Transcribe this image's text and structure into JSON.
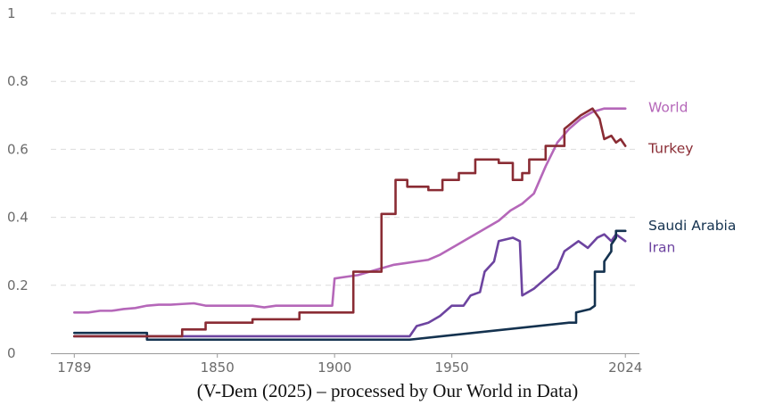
{
  "chart_data": {
    "type": "line",
    "title": "",
    "xlabel": "",
    "ylabel": "",
    "xlim": [
      1779,
      2030
    ],
    "ylim": [
      0,
      1
    ],
    "x_ticks": [
      "1789",
      "1850",
      "1900",
      "1950",
      "2024"
    ],
    "y_ticks": [
      "0",
      "0.2",
      "0.4",
      "0.6",
      "0.8",
      "1"
    ],
    "grid": "horizontal dashed",
    "legend": "inline labels at right end of lines",
    "series": [
      {
        "name": "World",
        "color": "#b567b9",
        "points": [
          [
            1789,
            0.12
          ],
          [
            1795,
            0.12
          ],
          [
            1800,
            0.125
          ],
          [
            1805,
            0.125
          ],
          [
            1810,
            0.13
          ],
          [
            1815,
            0.133
          ],
          [
            1820,
            0.14
          ],
          [
            1825,
            0.143
          ],
          [
            1830,
            0.143
          ],
          [
            1835,
            0.145
          ],
          [
            1840,
            0.147
          ],
          [
            1845,
            0.14
          ],
          [
            1850,
            0.14
          ],
          [
            1855,
            0.14
          ],
          [
            1860,
            0.14
          ],
          [
            1865,
            0.14
          ],
          [
            1870,
            0.135
          ],
          [
            1875,
            0.14
          ],
          [
            1880,
            0.14
          ],
          [
            1885,
            0.14
          ],
          [
            1890,
            0.14
          ],
          [
            1895,
            0.14
          ],
          [
            1899,
            0.14
          ],
          [
            1900,
            0.22
          ],
          [
            1905,
            0.225
          ],
          [
            1910,
            0.23
          ],
          [
            1915,
            0.24
          ],
          [
            1920,
            0.25
          ],
          [
            1925,
            0.26
          ],
          [
            1930,
            0.265
          ],
          [
            1935,
            0.27
          ],
          [
            1940,
            0.275
          ],
          [
            1945,
            0.29
          ],
          [
            1950,
            0.31
          ],
          [
            1955,
            0.33
          ],
          [
            1960,
            0.35
          ],
          [
            1965,
            0.37
          ],
          [
            1970,
            0.39
          ],
          [
            1975,
            0.42
          ],
          [
            1980,
            0.44
          ],
          [
            1985,
            0.47
          ],
          [
            1990,
            0.55
          ],
          [
            1995,
            0.62
          ],
          [
            2000,
            0.66
          ],
          [
            2005,
            0.69
          ],
          [
            2010,
            0.71
          ],
          [
            2015,
            0.72
          ],
          [
            2020,
            0.72
          ],
          [
            2024,
            0.72
          ]
        ]
      },
      {
        "name": "Turkey",
        "color": "#8a2c34",
        "points": [
          [
            1789,
            0.05
          ],
          [
            1835,
            0.05
          ],
          [
            1835,
            0.07
          ],
          [
            1845,
            0.07
          ],
          [
            1845,
            0.09
          ],
          [
            1865,
            0.09
          ],
          [
            1865,
            0.1
          ],
          [
            1885,
            0.1
          ],
          [
            1885,
            0.12
          ],
          [
            1908,
            0.12
          ],
          [
            1908,
            0.24
          ],
          [
            1920,
            0.24
          ],
          [
            1920,
            0.41
          ],
          [
            1926,
            0.41
          ],
          [
            1926,
            0.51
          ],
          [
            1931,
            0.51
          ],
          [
            1931,
            0.49
          ],
          [
            1940,
            0.49
          ],
          [
            1940,
            0.48
          ],
          [
            1946,
            0.48
          ],
          [
            1946,
            0.51
          ],
          [
            1953,
            0.51
          ],
          [
            1953,
            0.53
          ],
          [
            1960,
            0.53
          ],
          [
            1960,
            0.57
          ],
          [
            1970,
            0.57
          ],
          [
            1970,
            0.56
          ],
          [
            1976,
            0.56
          ],
          [
            1976,
            0.51
          ],
          [
            1980,
            0.51
          ],
          [
            1980,
            0.53
          ],
          [
            1983,
            0.53
          ],
          [
            1983,
            0.57
          ],
          [
            1990,
            0.57
          ],
          [
            1990,
            0.61
          ],
          [
            1998,
            0.61
          ],
          [
            1998,
            0.66
          ],
          [
            2005,
            0.7
          ],
          [
            2010,
            0.72
          ],
          [
            2013,
            0.69
          ],
          [
            2015,
            0.63
          ],
          [
            2018,
            0.64
          ],
          [
            2020,
            0.62
          ],
          [
            2022,
            0.63
          ],
          [
            2024,
            0.61
          ]
        ]
      },
      {
        "name": "Saudi Arabia",
        "color": "#14324f",
        "points": [
          [
            1789,
            0.06
          ],
          [
            1820,
            0.06
          ],
          [
            1820,
            0.04
          ],
          [
            1932,
            0.04
          ],
          [
            2000,
            0.09
          ],
          [
            2003,
            0.09
          ],
          [
            2003,
            0.12
          ],
          [
            2009,
            0.13
          ],
          [
            2011,
            0.14
          ],
          [
            2011,
            0.24
          ],
          [
            2015,
            0.24
          ],
          [
            2015,
            0.27
          ],
          [
            2018,
            0.3
          ],
          [
            2018,
            0.32
          ],
          [
            2020,
            0.34
          ],
          [
            2020,
            0.36
          ],
          [
            2024,
            0.36
          ]
        ]
      },
      {
        "name": "Iran",
        "color": "#6d44a0",
        "points": [
          [
            1789,
            0.05
          ],
          [
            1850,
            0.05
          ],
          [
            1920,
            0.05
          ],
          [
            1932,
            0.05
          ],
          [
            1935,
            0.08
          ],
          [
            1940,
            0.09
          ],
          [
            1945,
            0.11
          ],
          [
            1950,
            0.14
          ],
          [
            1955,
            0.14
          ],
          [
            1958,
            0.17
          ],
          [
            1962,
            0.18
          ],
          [
            1964,
            0.24
          ],
          [
            1968,
            0.27
          ],
          [
            1970,
            0.33
          ],
          [
            1976,
            0.34
          ],
          [
            1979,
            0.33
          ],
          [
            1980,
            0.17
          ],
          [
            1985,
            0.19
          ],
          [
            1990,
            0.22
          ],
          [
            1995,
            0.25
          ],
          [
            1998,
            0.3
          ],
          [
            2000,
            0.31
          ],
          [
            2004,
            0.33
          ],
          [
            2008,
            0.31
          ],
          [
            2012,
            0.34
          ],
          [
            2015,
            0.35
          ],
          [
            2018,
            0.33
          ],
          [
            2020,
            0.35
          ],
          [
            2024,
            0.33
          ]
        ]
      }
    ]
  },
  "caption": "(V-Dem (2025) – processed by Our World in Data)"
}
